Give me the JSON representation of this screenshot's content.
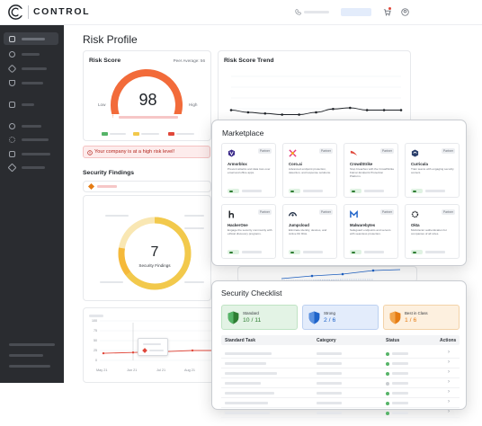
{
  "app": {
    "name": "CONTROL"
  },
  "colors": {
    "sidebar_bg": "#2a2c30",
    "gauge_orange": "#f26b3a",
    "donut_yellow": "#f2c94c",
    "risk_red": "#b3261e",
    "standard_green": "#2e7d32",
    "strong_blue": "#1e63c9",
    "best_orange": "#e57c14"
  },
  "header": {
    "icons": [
      "phone-icon",
      "cart-icon",
      "user-icon"
    ]
  },
  "page": {
    "title": "Risk Profile"
  },
  "risk_score": {
    "title": "Risk Score",
    "peer_label": "Peer Average: 56",
    "score": "98",
    "low_label": "Low",
    "high_label": "High",
    "score_fraction": 0.98
  },
  "trend": {
    "title": "Risk Score Trend",
    "chart_data": {
      "type": "line",
      "x": [
        0,
        1,
        2,
        3,
        4,
        5,
        6,
        7,
        8,
        9,
        10
      ],
      "y": [
        10,
        8,
        7,
        6,
        6,
        8,
        11,
        12,
        10,
        10,
        10
      ],
      "xlabel": "",
      "ylabel": ""
    }
  },
  "alert": {
    "text": "Your company is at a high risk level!"
  },
  "findings": {
    "title": "Security Findings",
    "count": "7",
    "caption": "Security Findings"
  },
  "history_chart": {
    "chart_data": {
      "type": "line",
      "categories": [
        "May 21",
        "Jun 21",
        "Jul 21",
        "Aug 21"
      ],
      "y_ticks": [
        "100",
        "75",
        "50",
        "25",
        "0"
      ],
      "values": [
        18,
        20,
        22,
        25
      ],
      "ylim": [
        0,
        100
      ]
    }
  },
  "marketplace": {
    "title": "Marketplace",
    "partner_badge": "Partner",
    "cards": [
      {
        "name": "Armorblox",
        "icon": "armorblox-icon",
        "desc": "Prevent attacks and data loss over email and office apps."
      },
      {
        "name": "Coro.ai",
        "icon": "coro-icon",
        "desc": "Advanced endpoint protection, detection, and response solutions."
      },
      {
        "name": "CrowdStrike",
        "icon": "crowdstrike-icon",
        "desc": "Stop breaches with the CrowdStrike Falcon Endpoint Protection Platform."
      },
      {
        "name": "Curricula",
        "icon": "curricula-icon",
        "desc": "Train teams with engaging security content."
      },
      {
        "name": "HackerOne",
        "icon": "hackerone-icon",
        "desc": "Engage the security community with ethical discovery programs."
      },
      {
        "name": "Jumpcloud",
        "icon": "jumpcloud-icon",
        "desc": "Eliminate identity, devices, and Active Dir Risk."
      },
      {
        "name": "Malwarebytes",
        "icon": "malwarebytes-icon",
        "desc": "Safeguard endpoints and servers with seamless protection."
      },
      {
        "name": "Okta",
        "icon": "okta-icon",
        "desc": "Multi-factor authentication for companies of all sizes."
      }
    ]
  },
  "checklist": {
    "title": "Security Checklist",
    "tiers": [
      {
        "label": "Standard",
        "value": "10 / 11"
      },
      {
        "label": "Strong",
        "value": "2 / 6"
      },
      {
        "label": "Best in Class",
        "value": "1 / 6"
      }
    ],
    "headers": {
      "task": "Standard Task",
      "category": "Category",
      "status": "Status",
      "actions": "Actions"
    },
    "rows": [
      {
        "status": "done",
        "action": "›"
      },
      {
        "status": "done",
        "action": "›"
      },
      {
        "status": "done",
        "action": "›"
      },
      {
        "status": "todo",
        "action": "›"
      },
      {
        "status": "done",
        "action": "›"
      },
      {
        "status": "done",
        "action": "›"
      },
      {
        "status": "done",
        "action": "›"
      }
    ]
  }
}
